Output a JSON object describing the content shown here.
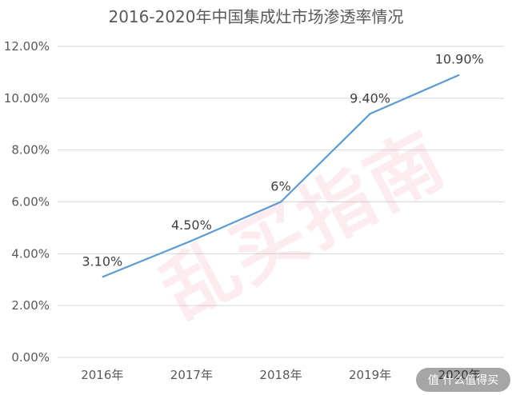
{
  "chart_data": {
    "type": "line",
    "title": "2016-2020年中国集成灶市场渗透率情况",
    "categories": [
      "2016年",
      "2017年",
      "2018年",
      "2019年",
      "2020年"
    ],
    "series": [
      {
        "values": [
          3.1,
          4.5,
          6.0,
          9.4,
          10.9
        ],
        "color": "#5b9bd5"
      }
    ],
    "data_labels": [
      "3.10%",
      "4.50%",
      "6%",
      "9.40%",
      "10.90%"
    ],
    "yticks": [
      "0.00%",
      "2.00%",
      "4.00%",
      "6.00%",
      "8.00%",
      "10.00%",
      "12.00%"
    ],
    "ylim": [
      0,
      12
    ],
    "grid": true,
    "legend": "none"
  },
  "watermark": {
    "text": "乱买指南",
    "color": "#e8475f"
  },
  "corner_badge": {
    "text": "值 什么值得买"
  },
  "colors": {
    "gridline": "#d9d9d9",
    "text": "#595959",
    "line": "#5b9bd5"
  }
}
